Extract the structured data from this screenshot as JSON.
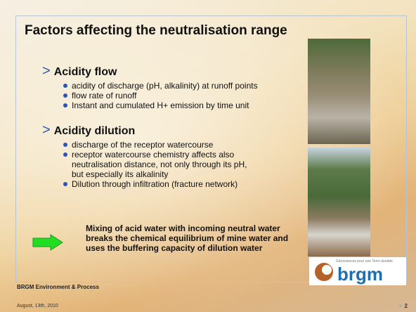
{
  "title": "Factors affecting the neutralisation range",
  "sections": [
    {
      "heading": "Acidity flow",
      "bullets": [
        "acidity of discharge (pH, alkalinity) at runoff points",
        "flow rate of runoff",
        "Instant and cumulated H+ emission by time unit"
      ]
    },
    {
      "heading": "Acidity dilution",
      "bullets": [
        "discharge of the receptor watercourse",
        "receptor watercourse chemistry affects also neutralisation distance, not only through its pH, but especially its alkalinity",
        "Dilution through infiltration (fracture network)"
      ]
    }
  ],
  "callout": "Mixing of acid water with incoming neutral water breaks the chemical equilibrium of mine water and uses the buffering capacity of dilution water",
  "logo": {
    "tagline": "Géosciences pour une Terre durable",
    "name": "brgm"
  },
  "footer": {
    "organisation": "BRGM Environment & Process",
    "date": "August, 13th, 2010",
    "page": "2"
  }
}
